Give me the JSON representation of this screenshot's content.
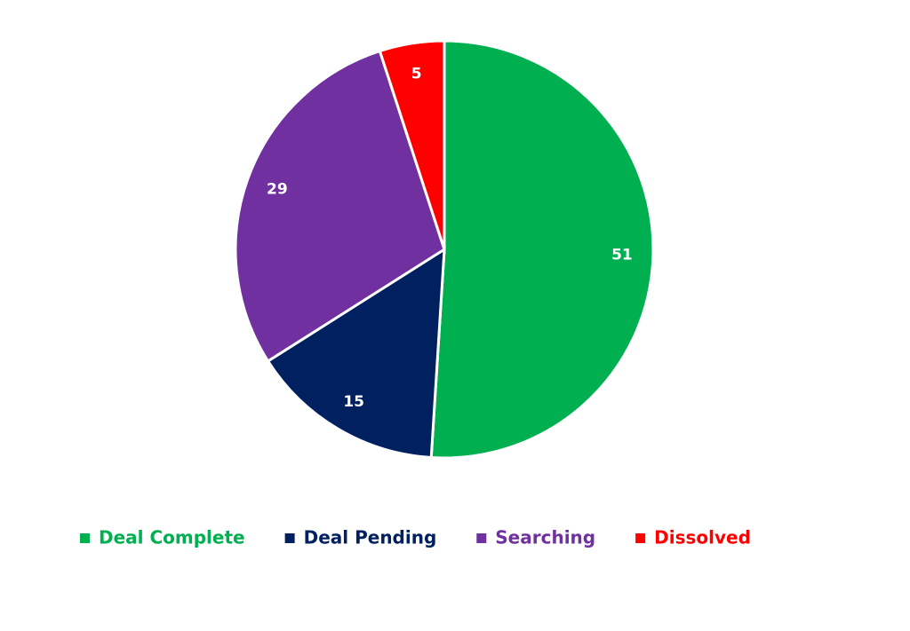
{
  "chart_data": {
    "type": "pie",
    "categories": [
      "Deal Complete",
      "Deal Pending",
      "Searching",
      "Dissolved"
    ],
    "values": [
      51,
      15,
      29,
      5
    ],
    "colors": [
      "#00b050",
      "#002060",
      "#7030a0",
      "#ff0000"
    ],
    "legend": "bottom"
  }
}
